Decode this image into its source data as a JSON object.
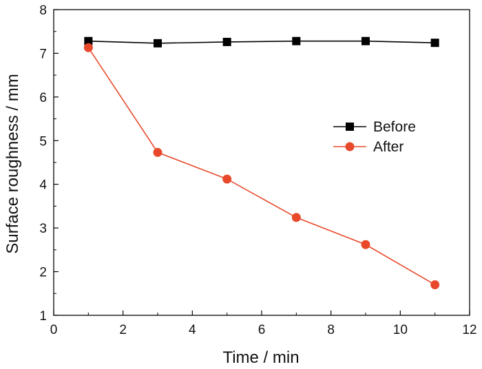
{
  "chart_data": {
    "type": "line",
    "title": "",
    "xlabel": "Time / min",
    "ylabel": "Surface roughness / mm",
    "xlim": [
      0,
      12
    ],
    "ylim": [
      1,
      8
    ],
    "xticks": [
      0,
      2,
      4,
      6,
      8,
      10,
      12
    ],
    "yticks": [
      1,
      2,
      3,
      4,
      5,
      6,
      7,
      8
    ],
    "grid": false,
    "legend_position": "right-middle",
    "x": [
      1,
      3,
      5,
      7,
      9,
      11
    ],
    "series": [
      {
        "name": "Before",
        "values": [
          7.28,
          7.23,
          7.26,
          7.28,
          7.28,
          7.24
        ],
        "color": "#000000",
        "marker": "square"
      },
      {
        "name": "After",
        "values": [
          7.13,
          4.73,
          4.12,
          3.24,
          2.62,
          1.7
        ],
        "color": "#e8492a",
        "marker": "circle"
      }
    ]
  }
}
